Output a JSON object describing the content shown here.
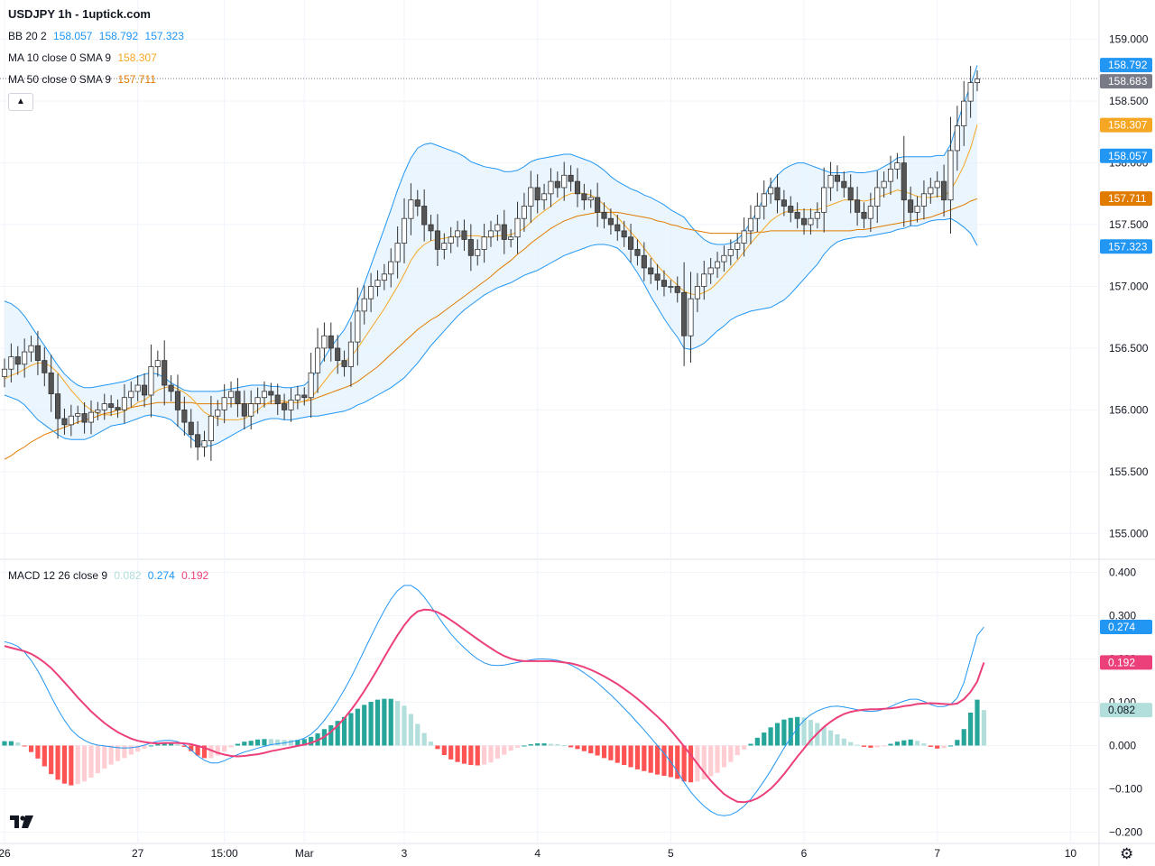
{
  "header": {
    "title": "USDJPY 1h - 1uptick.com"
  },
  "legend": {
    "bb": {
      "label": "BB 20 2",
      "values": [
        "158.057",
        "158.792",
        "157.323"
      ]
    },
    "ma10": {
      "label": "MA 10 close 0 SMA 9",
      "value": "158.307"
    },
    "ma50": {
      "label": "MA 50 close 0 SMA 9",
      "value": "157.711"
    },
    "macd": {
      "label": "MACD 12 26 close 9",
      "values": [
        "0.082",
        "0.274",
        "0.192"
      ]
    }
  },
  "controls": {
    "collapse_icon": "chevron-up-icon",
    "settings_icon": "gear-icon",
    "logo_icon": "tradingview-logo-icon"
  },
  "colors": {
    "up_candle": "#ffffff",
    "down_candle": "#555555",
    "bb_line": "#2196f3",
    "bb_fill": "#e3f2fd",
    "ma10": "#f5a623",
    "ma50": "#e07b00",
    "macd": "#2196f3",
    "signal": "#ec407a",
    "hist_up_strong": "#26a69a",
    "hist_up_weak": "#b2dfdb",
    "hist_down_strong": "#ff5252",
    "hist_down_weak": "#ffcdd2"
  },
  "chart_data": [
    {
      "type": "candlestick",
      "symbol": "USDJPY",
      "timeframe": "1h",
      "x_ticks": [
        "26",
        "27",
        "15:00",
        "Mar",
        "3",
        "4",
        "5",
        "6",
        "7",
        "10"
      ],
      "y_ticks": [
        "159.000",
        "158.500",
        "158.000",
        "157.500",
        "157.000",
        "156.500",
        "156.000",
        "155.500",
        "155.000"
      ],
      "ylim": [
        154.9,
        159.1
      ],
      "last_price": "158.683",
      "value_badges": [
        {
          "value": "158.792",
          "color": "#2196f3"
        },
        {
          "value": "158.683",
          "color": "#787b86"
        },
        {
          "value": "158.307",
          "color": "#f5a623"
        },
        {
          "value": "158.057",
          "color": "#2196f3"
        },
        {
          "value": "157.711",
          "color": "#e07b00"
        },
        {
          "value": "157.323",
          "color": "#2196f3"
        }
      ],
      "close": [
        156.33,
        156.43,
        156.37,
        156.47,
        156.52,
        156.4,
        156.3,
        156.13,
        155.93,
        155.88,
        155.95,
        155.97,
        155.9,
        155.98,
        156.0,
        156.05,
        156.02,
        156.0,
        156.1,
        156.15,
        156.2,
        156.12,
        156.35,
        156.4,
        156.2,
        156.15,
        156.0,
        155.9,
        155.8,
        155.7,
        155.75,
        155.95,
        156.0,
        156.1,
        156.15,
        156.05,
        155.95,
        156.05,
        156.1,
        156.15,
        156.12,
        156.05,
        156.0,
        156.08,
        156.12,
        156.1,
        156.3,
        156.5,
        156.6,
        156.5,
        156.4,
        156.35,
        156.55,
        156.8,
        156.9,
        157.0,
        157.05,
        157.1,
        157.2,
        157.35,
        157.55,
        157.7,
        157.65,
        157.5,
        157.45,
        157.3,
        157.35,
        157.4,
        157.45,
        157.38,
        157.25,
        157.3,
        157.4,
        157.45,
        157.5,
        157.38,
        157.4,
        157.55,
        157.65,
        157.8,
        157.7,
        157.75,
        157.85,
        157.8,
        157.9,
        157.85,
        157.75,
        157.7,
        157.72,
        157.6,
        157.55,
        157.5,
        157.45,
        157.4,
        157.3,
        157.25,
        157.15,
        157.1,
        157.05,
        157.0,
        157.0,
        156.95,
        156.6,
        156.9,
        157.0,
        157.1,
        157.15,
        157.2,
        157.25,
        157.3,
        157.35,
        157.45,
        157.55,
        157.65,
        157.75,
        157.8,
        157.7,
        157.65,
        157.6,
        157.55,
        157.5,
        157.55,
        157.6,
        157.8,
        157.9,
        157.85,
        157.8,
        157.7,
        157.6,
        157.55,
        157.65,
        157.8,
        157.85,
        157.95,
        158.0,
        157.7,
        157.6,
        157.65,
        157.75,
        157.8,
        157.85,
        157.7,
        158.1,
        158.3,
        158.5,
        158.65,
        158.68
      ],
      "bb_middle": [
        156.5,
        156.48,
        156.45,
        156.4,
        156.33,
        156.26,
        156.2,
        156.14,
        156.08,
        156.03,
        156.0,
        155.98,
        155.97,
        155.98,
        156.0,
        156.02,
        156.04,
        156.05,
        156.06,
        156.08,
        156.1,
        156.12,
        156.13,
        156.12,
        156.1,
        156.07,
        156.03,
        155.99,
        155.96,
        155.94,
        155.93,
        155.93,
        155.94,
        155.96,
        155.98,
        156.0,
        156.02,
        156.04,
        156.05,
        156.06,
        156.06,
        156.06,
        156.05,
        156.05,
        156.06,
        156.07,
        156.1,
        156.14,
        156.19,
        156.24,
        156.28,
        156.32,
        156.38,
        156.46,
        156.54,
        156.63,
        156.72,
        156.81,
        156.9,
        157.0,
        157.09,
        157.18,
        157.25,
        157.3,
        157.34,
        157.36,
        157.38,
        157.4,
        157.42,
        157.43,
        157.43,
        157.44,
        157.45,
        157.46,
        157.47,
        157.47,
        157.48,
        157.5,
        157.53,
        157.56,
        157.58,
        157.6,
        157.62,
        157.64,
        157.66,
        157.67,
        157.67,
        157.67,
        157.67,
        157.66,
        157.64,
        157.61,
        157.58,
        157.54,
        157.49,
        157.44,
        157.38,
        157.32,
        157.26,
        157.2,
        157.14,
        157.09,
        157.03,
        156.99,
        156.97,
        156.96,
        156.97,
        156.99,
        157.01,
        157.04,
        157.07,
        157.11,
        157.16,
        157.21,
        157.27,
        157.33,
        157.38,
        157.42,
        157.46,
        157.5,
        157.53,
        157.55,
        157.57,
        157.6,
        157.62,
        157.64,
        157.65,
        157.66,
        157.66,
        157.66,
        157.67,
        157.68,
        157.7,
        157.72,
        157.75,
        157.76,
        157.77,
        157.77,
        157.78,
        157.79,
        157.8,
        157.8,
        157.85,
        157.92,
        157.98,
        158.03,
        158.06
      ],
      "bb_width": [
        0.38,
        0.38,
        0.37,
        0.36,
        0.35,
        0.34,
        0.32,
        0.3,
        0.28,
        0.26,
        0.24,
        0.22,
        0.21,
        0.2,
        0.19,
        0.18,
        0.17,
        0.17,
        0.17,
        0.17,
        0.17,
        0.17,
        0.17,
        0.17,
        0.16,
        0.15,
        0.16,
        0.17,
        0.19,
        0.21,
        0.22,
        0.22,
        0.21,
        0.2,
        0.19,
        0.18,
        0.17,
        0.16,
        0.15,
        0.14,
        0.13,
        0.13,
        0.13,
        0.13,
        0.13,
        0.13,
        0.15,
        0.19,
        0.23,
        0.27,
        0.3,
        0.33,
        0.37,
        0.42,
        0.48,
        0.54,
        0.6,
        0.66,
        0.72,
        0.78,
        0.83,
        0.86,
        0.87,
        0.85,
        0.82,
        0.78,
        0.74,
        0.7,
        0.66,
        0.62,
        0.58,
        0.55,
        0.52,
        0.5,
        0.48,
        0.46,
        0.45,
        0.44,
        0.44,
        0.45,
        0.45,
        0.44,
        0.43,
        0.42,
        0.41,
        0.4,
        0.38,
        0.36,
        0.34,
        0.32,
        0.3,
        0.28,
        0.27,
        0.28,
        0.3,
        0.33,
        0.36,
        0.4,
        0.43,
        0.46,
        0.48,
        0.5,
        0.53,
        0.5,
        0.46,
        0.42,
        0.38,
        0.35,
        0.33,
        0.31,
        0.31,
        0.33,
        0.36,
        0.4,
        0.45,
        0.5,
        0.52,
        0.53,
        0.52,
        0.5,
        0.47,
        0.43,
        0.39,
        0.34,
        0.3,
        0.28,
        0.27,
        0.27,
        0.26,
        0.26,
        0.26,
        0.26,
        0.27,
        0.28,
        0.29,
        0.29,
        0.28,
        0.28,
        0.27,
        0.26,
        0.26,
        0.26,
        0.3,
        0.4,
        0.5,
        0.6,
        0.73
      ],
      "ma10": [
        156.25,
        156.28,
        156.3,
        156.33,
        156.36,
        156.38,
        156.38,
        156.35,
        156.3,
        156.23,
        156.16,
        156.1,
        156.04,
        156.0,
        155.97,
        155.96,
        155.96,
        155.97,
        155.99,
        156.02,
        156.06,
        156.08,
        156.12,
        156.16,
        156.18,
        156.19,
        156.17,
        156.14,
        156.1,
        156.04,
        155.98,
        155.95,
        155.93,
        155.92,
        155.92,
        155.92,
        155.93,
        155.96,
        156.0,
        156.04,
        156.07,
        156.08,
        156.07,
        156.06,
        156.06,
        156.07,
        156.1,
        156.16,
        156.23,
        156.3,
        156.36,
        156.39,
        156.43,
        156.5,
        156.58,
        156.66,
        156.74,
        156.82,
        156.91,
        157.0,
        157.1,
        157.21,
        157.29,
        157.34,
        157.37,
        157.38,
        157.39,
        157.4,
        157.41,
        157.41,
        157.41,
        157.41,
        157.4,
        157.4,
        157.41,
        157.41,
        157.42,
        157.44,
        157.47,
        157.52,
        157.57,
        157.61,
        157.65,
        157.69,
        157.73,
        157.75,
        157.76,
        157.75,
        157.74,
        157.71,
        157.66,
        157.61,
        157.56,
        157.5,
        157.44,
        157.38,
        157.31,
        157.24,
        157.17,
        157.11,
        157.06,
        157.01,
        156.96,
        156.94,
        156.93,
        156.95,
        156.98,
        157.03,
        157.09,
        157.15,
        157.21,
        157.28,
        157.35,
        157.41,
        157.47,
        157.53,
        157.57,
        157.6,
        157.61,
        157.62,
        157.62,
        157.62,
        157.62,
        157.64,
        157.66,
        157.68,
        157.7,
        157.7,
        157.7,
        157.69,
        157.7,
        157.72,
        157.74,
        157.76,
        157.78,
        157.77,
        157.75,
        157.73,
        157.72,
        157.72,
        157.73,
        157.73,
        157.78,
        157.87,
        157.98,
        158.12,
        158.31
      ],
      "ma50": [
        155.6,
        155.63,
        155.67,
        155.7,
        155.74,
        155.77,
        155.8,
        155.82,
        155.84,
        155.86,
        155.88,
        155.9,
        155.92,
        155.93,
        155.95,
        155.97,
        155.98,
        156.0,
        156.01,
        156.02,
        156.03,
        156.04,
        156.05,
        156.06,
        156.06,
        156.06,
        156.06,
        156.06,
        156.06,
        156.05,
        156.05,
        156.05,
        156.05,
        156.05,
        156.05,
        156.05,
        156.05,
        156.05,
        156.05,
        156.05,
        156.05,
        156.05,
        156.06,
        156.06,
        156.06,
        156.07,
        156.08,
        156.1,
        156.12,
        156.14,
        156.16,
        156.18,
        156.2,
        156.23,
        156.27,
        156.31,
        156.35,
        156.4,
        156.45,
        156.5,
        156.55,
        156.6,
        156.65,
        156.69,
        156.73,
        156.76,
        156.8,
        156.84,
        156.88,
        156.92,
        156.96,
        157.0,
        157.04,
        157.08,
        157.13,
        157.17,
        157.21,
        157.26,
        157.3,
        157.35,
        157.39,
        157.43,
        157.47,
        157.5,
        157.53,
        157.55,
        157.57,
        157.58,
        157.59,
        157.6,
        157.6,
        157.6,
        157.6,
        157.59,
        157.58,
        157.57,
        157.56,
        157.55,
        157.53,
        157.52,
        157.5,
        157.49,
        157.47,
        157.46,
        157.45,
        157.44,
        157.43,
        157.43,
        157.43,
        157.43,
        157.43,
        157.43,
        157.43,
        157.44,
        157.44,
        157.45,
        157.45,
        157.45,
        157.45,
        157.45,
        157.45,
        157.45,
        157.45,
        157.45,
        157.45,
        157.45,
        157.45,
        157.45,
        157.46,
        157.46,
        157.47,
        157.48,
        157.49,
        157.5,
        157.51,
        157.52,
        157.53,
        157.54,
        157.55,
        157.56,
        157.58,
        157.6,
        157.62,
        157.64,
        157.66,
        157.69,
        157.71
      ]
    },
    {
      "type": "macd",
      "params": "12 26 close 9",
      "x_ticks": [
        "26",
        "27",
        "15:00",
        "Mar",
        "3",
        "4",
        "5",
        "6",
        "7",
        "10"
      ],
      "y_ticks": [
        "0.400",
        "0.300",
        "0.200",
        "0.100",
        "0.000",
        "−0.100",
        "−0.200"
      ],
      "ylim": [
        -0.22,
        0.42
      ],
      "value_badges": [
        {
          "value": "0.274",
          "color": "#2196f3"
        },
        {
          "value": "0.192",
          "color": "#ec407a"
        },
        {
          "value": "0.082",
          "color": "#b2dfdb"
        }
      ],
      "macd": [
        0.24,
        0.236,
        0.229,
        0.216,
        0.197,
        0.173,
        0.144,
        0.113,
        0.084,
        0.058,
        0.037,
        0.022,
        0.012,
        0.005,
        0.001,
        -0.001,
        -0.003,
        -0.005,
        -0.006,
        -0.005,
        -0.003,
        0.001,
        0.006,
        0.01,
        0.012,
        0.012,
        0.009,
        0.002,
        -0.01,
        -0.024,
        -0.034,
        -0.04,
        -0.04,
        -0.035,
        -0.028,
        -0.021,
        -0.015,
        -0.011,
        -0.006,
        -0.002,
        0.002,
        0.004,
        0.006,
        0.009,
        0.012,
        0.017,
        0.026,
        0.04,
        0.058,
        0.079,
        0.103,
        0.129,
        0.157,
        0.188,
        0.22,
        0.252,
        0.283,
        0.312,
        0.338,
        0.358,
        0.37,
        0.37,
        0.36,
        0.343,
        0.322,
        0.3,
        0.278,
        0.258,
        0.241,
        0.226,
        0.212,
        0.2,
        0.191,
        0.186,
        0.185,
        0.186,
        0.189,
        0.192,
        0.195,
        0.198,
        0.2,
        0.2,
        0.199,
        0.197,
        0.193,
        0.186,
        0.178,
        0.168,
        0.157,
        0.145,
        0.131,
        0.117,
        0.102,
        0.086,
        0.07,
        0.053,
        0.036,
        0.018,
        0.0,
        -0.018,
        -0.038,
        -0.06,
        -0.085,
        -0.107,
        -0.125,
        -0.14,
        -0.152,
        -0.16,
        -0.162,
        -0.16,
        -0.152,
        -0.14,
        -0.124,
        -0.104,
        -0.082,
        -0.058,
        -0.032,
        -0.006,
        0.018,
        0.04,
        0.058,
        0.071,
        0.08,
        0.086,
        0.09,
        0.091,
        0.089,
        0.086,
        0.083,
        0.08,
        0.079,
        0.08,
        0.084,
        0.09,
        0.097,
        0.103,
        0.107,
        0.107,
        0.102,
        0.095,
        0.09,
        0.09,
        0.095,
        0.11,
        0.145,
        0.2,
        0.254,
        0.274
      ],
      "signal": [
        0.23,
        0.226,
        0.222,
        0.218,
        0.212,
        0.203,
        0.192,
        0.179,
        0.163,
        0.146,
        0.129,
        0.111,
        0.095,
        0.079,
        0.065,
        0.052,
        0.041,
        0.031,
        0.023,
        0.016,
        0.011,
        0.008,
        0.006,
        0.005,
        0.006,
        0.006,
        0.006,
        0.005,
        0.003,
        -0.001,
        -0.005,
        -0.011,
        -0.017,
        -0.021,
        -0.024,
        -0.025,
        -0.024,
        -0.022,
        -0.02,
        -0.017,
        -0.013,
        -0.01,
        -0.007,
        -0.004,
        -0.001,
        0.002,
        0.006,
        0.012,
        0.02,
        0.032,
        0.046,
        0.063,
        0.082,
        0.103,
        0.126,
        0.151,
        0.177,
        0.204,
        0.23,
        0.255,
        0.278,
        0.297,
        0.31,
        0.314,
        0.313,
        0.308,
        0.3,
        0.29,
        0.279,
        0.268,
        0.257,
        0.246,
        0.235,
        0.225,
        0.215,
        0.207,
        0.201,
        0.197,
        0.195,
        0.195,
        0.195,
        0.195,
        0.195,
        0.194,
        0.192,
        0.19,
        0.186,
        0.181,
        0.175,
        0.168,
        0.16,
        0.151,
        0.142,
        0.131,
        0.12,
        0.108,
        0.095,
        0.081,
        0.067,
        0.052,
        0.035,
        0.017,
        -0.002,
        -0.022,
        -0.042,
        -0.062,
        -0.081,
        -0.097,
        -0.112,
        -0.122,
        -0.13,
        -0.131,
        -0.128,
        -0.122,
        -0.112,
        -0.1,
        -0.084,
        -0.066,
        -0.046,
        -0.026,
        -0.007,
        0.012,
        0.028,
        0.043,
        0.055,
        0.065,
        0.073,
        0.078,
        0.081,
        0.083,
        0.084,
        0.084,
        0.085,
        0.086,
        0.088,
        0.091,
        0.093,
        0.096,
        0.097,
        0.098,
        0.097,
        0.096,
        0.095,
        0.097,
        0.107,
        0.124,
        0.148,
        0.192
      ]
    }
  ]
}
